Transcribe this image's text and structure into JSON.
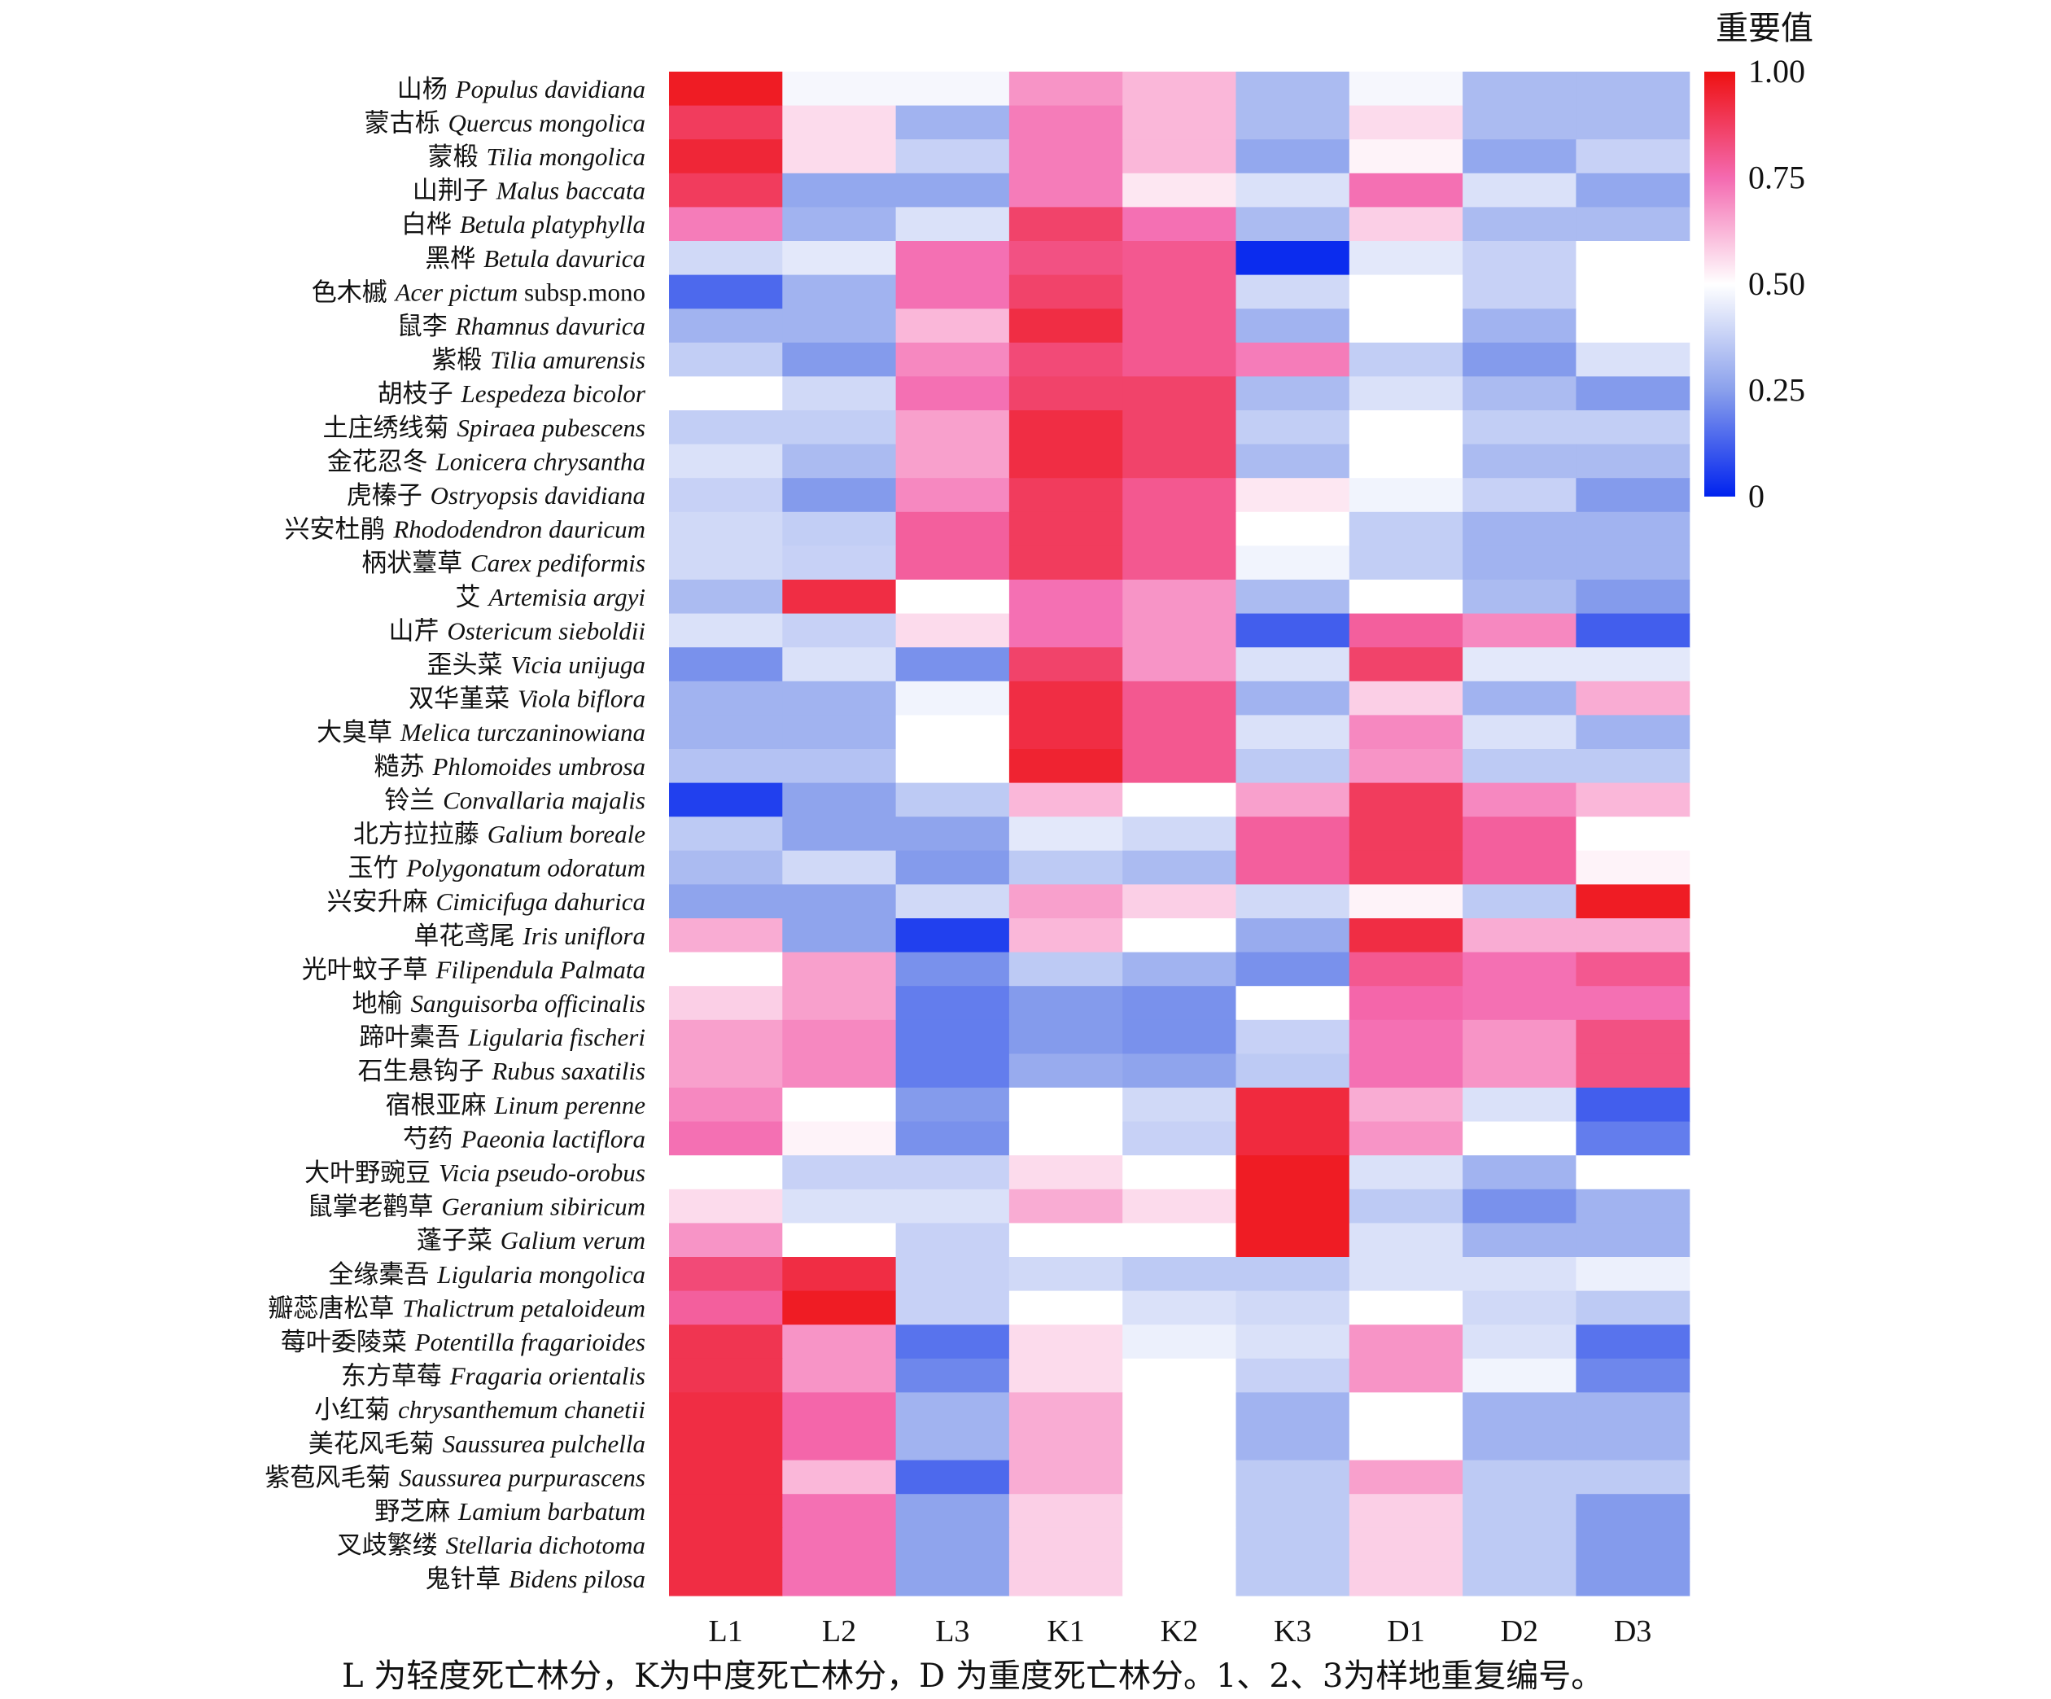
{
  "chart_data": {
    "type": "heatmap",
    "legend_title": "重要值",
    "colorbar_ticks": [
      "1.00",
      "0.75",
      "0.50",
      "0.25",
      "0"
    ],
    "value_range": [
      0,
      1
    ],
    "colors": {
      "low": "#0022ee",
      "mid": "#ffffff",
      "high": "#ee1111"
    },
    "columns": [
      "L1",
      "L2",
      "L3",
      "K1",
      "K2",
      "K3",
      "D1",
      "D2",
      "D3"
    ],
    "rows": [
      {
        "cn": "山杨",
        "latin": "Populus davidiana",
        "extra": ""
      },
      {
        "cn": "蒙古栎",
        "latin": "Quercus mongolica",
        "extra": ""
      },
      {
        "cn": "蒙椴",
        "latin": "Tilia mongolica",
        "extra": ""
      },
      {
        "cn": "山荆子",
        "latin": "Malus baccata",
        "extra": ""
      },
      {
        "cn": "白桦",
        "latin": "Betula platyphylla",
        "extra": ""
      },
      {
        "cn": "黑桦",
        "latin": "Betula davurica",
        "extra": ""
      },
      {
        "cn": "色木槭",
        "latin": "Acer pictum",
        "extra": " subsp.mono"
      },
      {
        "cn": "鼠李",
        "latin": "Rhamnus davurica",
        "extra": ""
      },
      {
        "cn": "紫椴",
        "latin": "Tilia amurensis",
        "extra": ""
      },
      {
        "cn": "胡枝子",
        "latin": "Lespedeza bicolor",
        "extra": ""
      },
      {
        "cn": "土庄绣线菊",
        "latin": "Spiraea pubescens",
        "extra": ""
      },
      {
        "cn": "金花忍冬",
        "latin": "Lonicera chrysantha",
        "extra": ""
      },
      {
        "cn": "虎榛子",
        "latin": "Ostryopsis davidiana",
        "extra": ""
      },
      {
        "cn": "兴安杜鹃",
        "latin": "Rhododendron dauricum",
        "extra": ""
      },
      {
        "cn": "柄状薹草",
        "latin": "Carex pediformis",
        "extra": ""
      },
      {
        "cn": "艾",
        "latin": "Artemisia argyi",
        "extra": ""
      },
      {
        "cn": "山芹",
        "latin": "Ostericum sieboldii",
        "extra": ""
      },
      {
        "cn": "歪头菜",
        "latin": "Vicia unijuga",
        "extra": ""
      },
      {
        "cn": "双华堇菜",
        "latin": "Viola biflora",
        "extra": ""
      },
      {
        "cn": "大臭草",
        "latin": "Melica turczaninowiana",
        "extra": ""
      },
      {
        "cn": "糙苏",
        "latin": "Phlomoides umbrosa",
        "extra": ""
      },
      {
        "cn": "铃兰",
        "latin": "Convallaria majalis",
        "extra": ""
      },
      {
        "cn": "北方拉拉藤",
        "latin": "Galium boreale",
        "extra": ""
      },
      {
        "cn": "玉竹",
        "latin": "Polygonatum odoratum",
        "extra": ""
      },
      {
        "cn": "兴安升麻",
        "latin": "Cimicifuga dahurica",
        "extra": ""
      },
      {
        "cn": "单花鸢尾",
        "latin": "Iris uniflora",
        "extra": ""
      },
      {
        "cn": "光叶蚊子草",
        "latin": "Filipendula Palmata",
        "extra": ""
      },
      {
        "cn": "地榆",
        "latin": "Sanguisorba officinalis",
        "extra": ""
      },
      {
        "cn": "蹄叶橐吾",
        "latin": "Ligularia fischeri",
        "extra": ""
      },
      {
        "cn": "石生悬钩子",
        "latin": "Rubus saxatilis",
        "extra": ""
      },
      {
        "cn": "宿根亚麻",
        "latin": "Linum perenne",
        "extra": ""
      },
      {
        "cn": "芍药",
        "latin": "Paeonia lactiflora",
        "extra": ""
      },
      {
        "cn": "大叶野豌豆",
        "latin": "Vicia pseudo-orobus",
        "extra": ""
      },
      {
        "cn": "鼠掌老鹳草",
        "latin": "Geranium sibiricum",
        "extra": ""
      },
      {
        "cn": "蓬子菜",
        "latin": "Galium verum",
        "extra": ""
      },
      {
        "cn": "全缘橐吾",
        "latin": "Ligularia mongolica",
        "extra": ""
      },
      {
        "cn": "瓣蕊唐松草",
        "latin": "Thalictrum petaloideum",
        "extra": ""
      },
      {
        "cn": "莓叶委陵菜",
        "latin": "Potentilla fragarioides",
        "extra": ""
      },
      {
        "cn": "东方草莓",
        "latin": "Fragaria orientalis",
        "extra": ""
      },
      {
        "cn": "小红菊",
        "latin": "chrysanthemum chanetii",
        "extra": ""
      },
      {
        "cn": "美花风毛菊",
        "latin": "Saussurea pulchella",
        "extra": ""
      },
      {
        "cn": "紫苞风毛菊",
        "latin": "Saussurea purpurascens",
        "extra": ""
      },
      {
        "cn": "野芝麻",
        "latin": "Lamium barbatum",
        "extra": ""
      },
      {
        "cn": "叉歧繁缕",
        "latin": "Stellaria dichotoma",
        "extra": ""
      },
      {
        "cn": "鬼针草",
        "latin": "Bidens pilosa",
        "extra": ""
      }
    ],
    "values": [
      [
        0.97,
        0.48,
        0.48,
        0.68,
        0.62,
        0.32,
        0.48,
        0.32,
        0.32
      ],
      [
        0.88,
        0.56,
        0.3,
        0.72,
        0.62,
        0.32,
        0.56,
        0.32,
        0.32
      ],
      [
        0.94,
        0.56,
        0.38,
        0.72,
        0.62,
        0.27,
        0.52,
        0.27,
        0.38
      ],
      [
        0.88,
        0.27,
        0.27,
        0.72,
        0.54,
        0.42,
        0.74,
        0.42,
        0.27
      ],
      [
        0.72,
        0.3,
        0.42,
        0.86,
        0.74,
        0.32,
        0.58,
        0.32,
        0.32
      ],
      [
        0.4,
        0.44,
        0.74,
        0.82,
        0.8,
        0.02,
        0.44,
        0.38,
        0.5
      ],
      [
        0.14,
        0.3,
        0.74,
        0.86,
        0.8,
        0.4,
        0.5,
        0.38,
        0.5
      ],
      [
        0.3,
        0.3,
        0.62,
        0.92,
        0.8,
        0.3,
        0.5,
        0.3,
        0.5
      ],
      [
        0.37,
        0.24,
        0.7,
        0.84,
        0.8,
        0.72,
        0.37,
        0.24,
        0.42
      ],
      [
        0.5,
        0.4,
        0.74,
        0.86,
        0.86,
        0.32,
        0.42,
        0.32,
        0.24
      ],
      [
        0.37,
        0.37,
        0.66,
        0.92,
        0.86,
        0.37,
        0.5,
        0.37,
        0.37
      ],
      [
        0.42,
        0.32,
        0.66,
        0.92,
        0.86,
        0.32,
        0.5,
        0.32,
        0.32
      ],
      [
        0.38,
        0.24,
        0.7,
        0.88,
        0.8,
        0.54,
        0.47,
        0.38,
        0.24
      ],
      [
        0.4,
        0.37,
        0.78,
        0.88,
        0.8,
        0.5,
        0.37,
        0.3,
        0.3
      ],
      [
        0.4,
        0.38,
        0.78,
        0.88,
        0.8,
        0.47,
        0.37,
        0.3,
        0.3
      ],
      [
        0.32,
        0.92,
        0.5,
        0.74,
        0.68,
        0.32,
        0.5,
        0.32,
        0.24
      ],
      [
        0.42,
        0.38,
        0.56,
        0.74,
        0.68,
        0.12,
        0.78,
        0.7,
        0.12
      ],
      [
        0.22,
        0.42,
        0.22,
        0.86,
        0.68,
        0.42,
        0.86,
        0.44,
        0.44
      ],
      [
        0.3,
        0.3,
        0.47,
        0.92,
        0.8,
        0.3,
        0.58,
        0.3,
        0.64
      ],
      [
        0.3,
        0.3,
        0.5,
        0.92,
        0.8,
        0.42,
        0.7,
        0.42,
        0.3
      ],
      [
        0.34,
        0.34,
        0.5,
        0.95,
        0.8,
        0.36,
        0.68,
        0.36,
        0.36
      ],
      [
        0.06,
        0.26,
        0.36,
        0.62,
        0.5,
        0.66,
        0.88,
        0.7,
        0.62
      ],
      [
        0.36,
        0.26,
        0.26,
        0.44,
        0.4,
        0.78,
        0.88,
        0.78,
        0.5
      ],
      [
        0.32,
        0.4,
        0.24,
        0.36,
        0.32,
        0.78,
        0.88,
        0.78,
        0.52
      ],
      [
        0.26,
        0.26,
        0.4,
        0.66,
        0.58,
        0.4,
        0.52,
        0.36,
        0.97
      ],
      [
        0.64,
        0.26,
        0.06,
        0.62,
        0.5,
        0.28,
        0.92,
        0.64,
        0.64
      ],
      [
        0.5,
        0.66,
        0.22,
        0.36,
        0.3,
        0.22,
        0.8,
        0.74,
        0.8
      ],
      [
        0.58,
        0.66,
        0.18,
        0.24,
        0.22,
        0.5,
        0.76,
        0.74,
        0.74
      ],
      [
        0.66,
        0.7,
        0.18,
        0.24,
        0.22,
        0.38,
        0.74,
        0.68,
        0.82
      ],
      [
        0.66,
        0.7,
        0.18,
        0.28,
        0.26,
        0.36,
        0.74,
        0.68,
        0.82
      ],
      [
        0.7,
        0.5,
        0.24,
        0.5,
        0.4,
        0.93,
        0.64,
        0.42,
        0.12
      ],
      [
        0.74,
        0.52,
        0.22,
        0.5,
        0.38,
        0.93,
        0.68,
        0.5,
        0.18
      ],
      [
        0.5,
        0.38,
        0.38,
        0.56,
        0.5,
        0.97,
        0.42,
        0.3,
        0.5
      ],
      [
        0.56,
        0.42,
        0.42,
        0.64,
        0.56,
        0.97,
        0.36,
        0.22,
        0.3
      ],
      [
        0.68,
        0.5,
        0.38,
        0.5,
        0.5,
        0.97,
        0.42,
        0.3,
        0.3
      ],
      [
        0.84,
        0.92,
        0.38,
        0.4,
        0.36,
        0.36,
        0.42,
        0.42,
        0.46
      ],
      [
        0.78,
        0.97,
        0.38,
        0.5,
        0.42,
        0.4,
        0.5,
        0.4,
        0.36
      ],
      [
        0.9,
        0.68,
        0.16,
        0.56,
        0.46,
        0.42,
        0.68,
        0.42,
        0.16
      ],
      [
        0.9,
        0.68,
        0.2,
        0.56,
        0.5,
        0.38,
        0.68,
        0.47,
        0.2
      ],
      [
        0.92,
        0.76,
        0.3,
        0.64,
        0.5,
        0.3,
        0.5,
        0.3,
        0.3
      ],
      [
        0.92,
        0.76,
        0.3,
        0.64,
        0.5,
        0.3,
        0.5,
        0.3,
        0.3
      ],
      [
        0.92,
        0.62,
        0.14,
        0.64,
        0.5,
        0.36,
        0.66,
        0.36,
        0.36
      ],
      [
        0.92,
        0.74,
        0.26,
        0.58,
        0.5,
        0.36,
        0.58,
        0.36,
        0.24
      ],
      [
        0.92,
        0.74,
        0.26,
        0.58,
        0.5,
        0.36,
        0.58,
        0.36,
        0.24
      ],
      [
        0.92,
        0.74,
        0.26,
        0.58,
        0.5,
        0.36,
        0.58,
        0.36,
        0.24
      ]
    ]
  },
  "footnote": "L 为轻度死亡林分，K为中度死亡林分，D 为重度死亡林分。1、2、3为样地重复编号。"
}
